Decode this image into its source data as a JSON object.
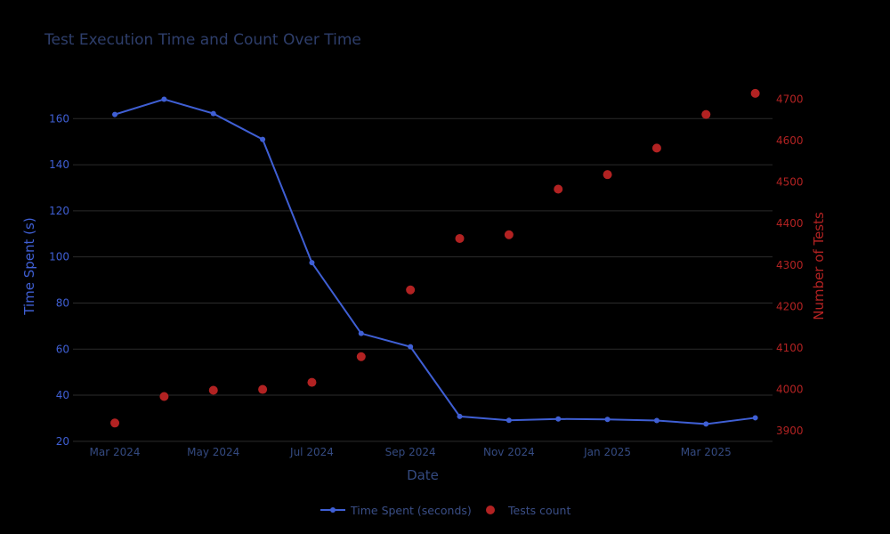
{
  "chart_data": {
    "type": "line",
    "title": "Test Execution Time and Count Over Time",
    "xlabel": "Date",
    "ylabel": "Time Spent (s)",
    "y2label": "Number of Tests",
    "x_tick_labels": [
      "Mar 2024",
      "May 2024",
      "Jul 2024",
      "Sep 2024",
      "Nov 2024",
      "Jan 2025",
      "Mar 2025"
    ],
    "x_tick_positions": [
      0,
      2,
      4,
      6,
      8,
      10,
      12
    ],
    "y_ticks": [
      20,
      40,
      60,
      80,
      100,
      120,
      140,
      160
    ],
    "y2_ticks": [
      3900,
      4000,
      4100,
      4200,
      4300,
      4400,
      4500,
      4600,
      4700
    ],
    "ylim": [
      18.4,
      174.4
    ],
    "y2lim": [
      3866,
      4733
    ],
    "xlim": [
      -0.85,
      13.35
    ],
    "categories": [
      "Mar 2024",
      "Apr 2024",
      "May 2024",
      "Jun 2024",
      "Jul 2024",
      "Aug 2024",
      "Sep 2024",
      "Oct 2024",
      "Nov 2024",
      "Dec 2024",
      "Jan 2025",
      "Feb 2025",
      "Mar 2025",
      "Apr 2025"
    ],
    "series": [
      {
        "name": "Time Spent (seconds)",
        "axis": "left",
        "style": "line+markers",
        "color": "#3F5FD4",
        "values": [
          161.8,
          168.4,
          162.2,
          151.0,
          97.5,
          66.8,
          61.0,
          30.8,
          29.1,
          29.7,
          29.5,
          29.0,
          27.5,
          30.2
        ]
      },
      {
        "name": "Tests count",
        "axis": "right",
        "style": "markers",
        "color": "#B22222",
        "values": [
          3919,
          3983,
          3998,
          4000,
          4017,
          4079,
          4240,
          4364,
          4373,
          4483,
          4518,
          4582,
          4663,
          4714
        ]
      }
    ],
    "legend_position": "bottom-center"
  },
  "colors": {
    "background": "#000000",
    "grid": "#2B2B2B",
    "title": "#2E3E6B",
    "left_axis": "#3F5FD4",
    "right_axis": "#B22222",
    "x_axis": "#344A80",
    "legend_text": "#3A4E86"
  }
}
